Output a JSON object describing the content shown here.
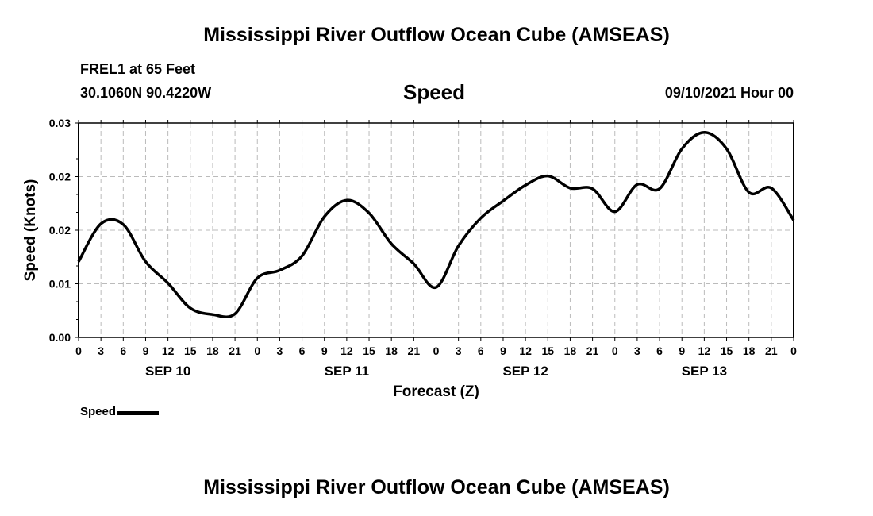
{
  "header": {
    "title": "Mississippi River Outflow Ocean Cube (AMSEAS)",
    "station": "FREL1 at 65 Feet",
    "coords": "30.1060N  90.4220W",
    "subtitle": "Speed",
    "datetime": "09/10/2021 Hour 00"
  },
  "footer": {
    "title": "Mississippi River Outflow Ocean Cube (AMSEAS)"
  },
  "chart_data": {
    "type": "line",
    "title": "Speed",
    "xlabel": "Forecast (Z)",
    "ylabel": "Speed (Knots)",
    "ylim": [
      0,
      0.03
    ],
    "xlim": [
      0,
      96
    ],
    "grid": true,
    "yticks": [
      0,
      0.0075,
      0.015,
      0.0225,
      0.03
    ],
    "ytick_labels": [
      "0.00",
      "0.01",
      "0.02",
      "0.02",
      "0.03"
    ],
    "xtick_labels": [
      "0",
      "3",
      "6",
      "9",
      "12",
      "15",
      "18",
      "21",
      "0",
      "3",
      "6",
      "9",
      "12",
      "15",
      "18",
      "21",
      "0",
      "3",
      "6",
      "9",
      "12",
      "15",
      "18",
      "21",
      "0",
      "3",
      "6",
      "9",
      "12",
      "15",
      "18",
      "21",
      "0"
    ],
    "day_labels": [
      {
        "hour": 12,
        "label": "SEP 10"
      },
      {
        "hour": 36,
        "label": "SEP 11"
      },
      {
        "hour": 60,
        "label": "SEP 12"
      },
      {
        "hour": 84,
        "label": "SEP 13"
      }
    ],
    "legend": {
      "label": "Speed",
      "placement": "bottom-left"
    },
    "series": [
      {
        "name": "Speed",
        "color": "#000000",
        "x": [
          0,
          3,
          6,
          9,
          12,
          15,
          18,
          21,
          24,
          27,
          30,
          33,
          36,
          39,
          42,
          45,
          48,
          51,
          54,
          57,
          60,
          63,
          66,
          69,
          72,
          75,
          78,
          81,
          84,
          87,
          90,
          93,
          96
        ],
        "values": [
          0.0106,
          0.0159,
          0.0158,
          0.0106,
          0.0076,
          0.0041,
          0.0032,
          0.0033,
          0.0083,
          0.0094,
          0.0114,
          0.0169,
          0.0192,
          0.0174,
          0.0131,
          0.0103,
          0.007,
          0.0128,
          0.0167,
          0.0191,
          0.0213,
          0.0226,
          0.0209,
          0.0208,
          0.0176,
          0.0214,
          0.0208,
          0.0264,
          0.0287,
          0.0264,
          0.0203,
          0.0209,
          0.0164
        ]
      }
    ]
  }
}
